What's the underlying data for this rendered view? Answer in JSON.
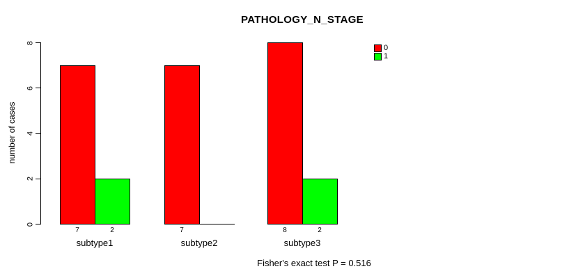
{
  "chart_data": {
    "type": "bar",
    "title": "PATHOLOGY_N_STAGE",
    "xlabel": "",
    "ylabel": "number of cases",
    "categories": [
      "subtype1",
      "subtype2",
      "subtype3"
    ],
    "series": [
      {
        "name": "0",
        "color": "#FF0000",
        "values": [
          7,
          7,
          8
        ]
      },
      {
        "name": "1",
        "color": "#00FF00",
        "values": [
          2,
          0,
          2
        ]
      }
    ],
    "bar_value_labels": [
      [
        "7",
        "2"
      ],
      [
        "7",
        ""
      ],
      [
        "8",
        "2"
      ]
    ],
    "ylim": [
      0,
      8
    ],
    "yticks": [
      "0",
      "2",
      "4",
      "6",
      "8"
    ],
    "grid": false,
    "legend_position": "top-right",
    "legend": [
      {
        "label": "0",
        "color": "#FF0000"
      },
      {
        "label": "1",
        "color": "#00FF00"
      }
    ],
    "annotation": "Fisher's exact test P = 0.516",
    "axis_color": "#000000",
    "background": "#FFFFFF"
  }
}
